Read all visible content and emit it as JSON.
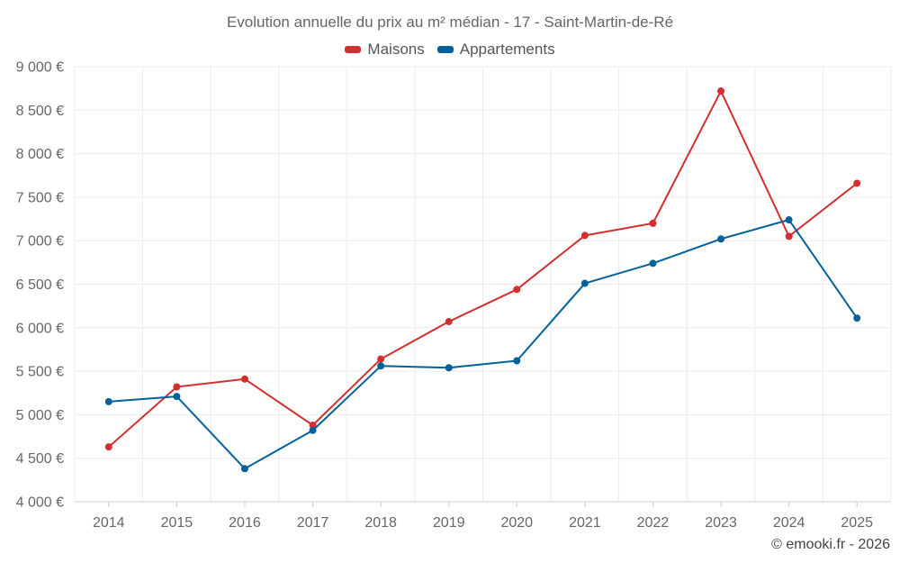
{
  "chart_data": {
    "type": "line",
    "title": "Evolution annuelle du prix au m² médian - 17 - Saint-Martin-de-Ré",
    "categories": [
      "2014",
      "2015",
      "2016",
      "2017",
      "2018",
      "2019",
      "2020",
      "2021",
      "2022",
      "2023",
      "2024",
      "2025"
    ],
    "series": [
      {
        "name": "Maisons",
        "color": "#d32f2f",
        "values": [
          4630,
          5320,
          5410,
          4880,
          5640,
          6070,
          6440,
          7060,
          7200,
          8720,
          7050,
          7660
        ]
      },
      {
        "name": "Appartements",
        "color": "#01619b",
        "values": [
          5150,
          5210,
          4380,
          4820,
          5560,
          5540,
          5620,
          6510,
          6740,
          7020,
          7240,
          6110
        ]
      }
    ],
    "ylim": [
      4000,
      9000
    ],
    "yticks": [
      4000,
      4500,
      5000,
      5500,
      6000,
      6500,
      7000,
      7500,
      8000,
      8500,
      9000
    ],
    "ytick_labels": [
      "4 000 €",
      "4 500 €",
      "5 000 €",
      "5 500 €",
      "6 000 €",
      "6 500 €",
      "7 000 €",
      "7 500 €",
      "8 000 €",
      "8 500 €",
      "9 000 €"
    ],
    "grid": true,
    "legend": "top-center",
    "xlabel": "",
    "ylabel": ""
  },
  "credit": "© emooki.fr - 2026"
}
